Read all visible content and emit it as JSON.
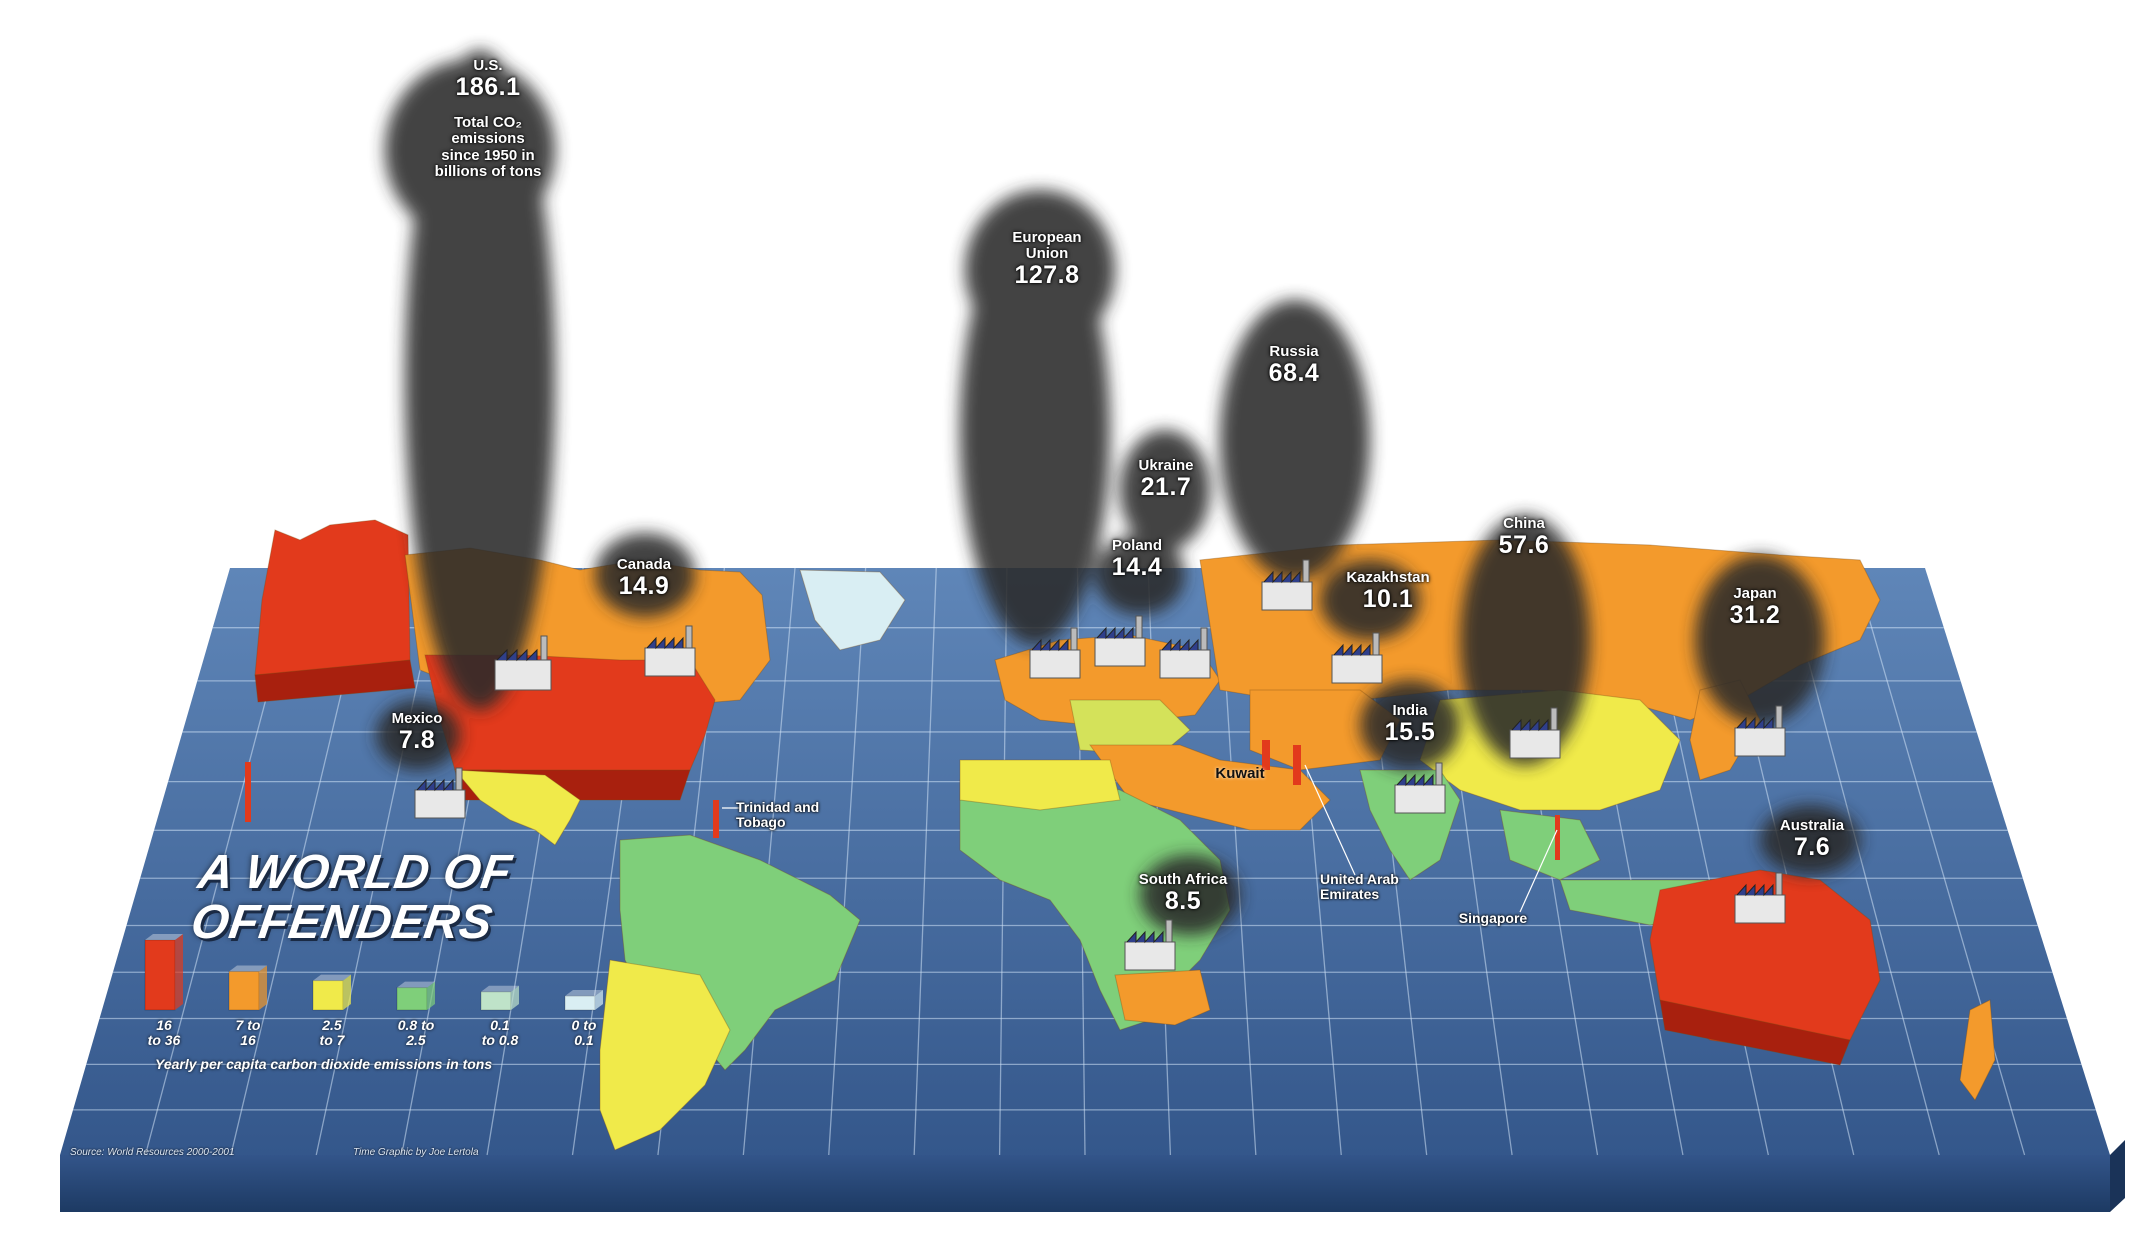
{
  "title_lines": [
    "A WORLD OF",
    "OFFENDERS"
  ],
  "us": {
    "name": "U.S.",
    "value": "186.1",
    "note": "Total CO₂ emissions since 1950 in billions of tons"
  },
  "eu": {
    "name": "European Union",
    "value": "127.8"
  },
  "russia": {
    "name": "Russia",
    "value": "68.4"
  },
  "ukraine": {
    "name": "Ukraine",
    "value": "21.7"
  },
  "poland": {
    "name": "Poland",
    "value": "14.4"
  },
  "china": {
    "name": "China",
    "value": "57.6"
  },
  "kazakhstan": {
    "name": "Kazakhstan",
    "value": "10.1"
  },
  "japan": {
    "name": "Japan",
    "value": "31.2"
  },
  "canada": {
    "name": "Canada",
    "value": "14.9"
  },
  "mexico": {
    "name": "Mexico",
    "value": "7.8"
  },
  "india": {
    "name": "India",
    "value": "15.5"
  },
  "south_africa": {
    "name": "South Africa",
    "value": "8.5"
  },
  "australia": {
    "name": "Australia",
    "value": "7.6"
  },
  "kuwait": {
    "name": "Kuwait"
  },
  "trinidad": {
    "name": "Trinidad and Tobago"
  },
  "uae": {
    "name": "United Arab Emirates"
  },
  "singapore": {
    "name": "Singapore"
  },
  "legend": {
    "caption": "Yearly per capita carbon dioxide emissions in tons",
    "bins": [
      {
        "label": "16\nto 36",
        "color": "#e23a1c",
        "level": 1.0
      },
      {
        "label": "7 to\n16",
        "color": "#f39a2c",
        "level": 0.55
      },
      {
        "label": "2.5\nto 7",
        "color": "#f0ea4a",
        "level": 0.42
      },
      {
        "label": "0.8 to\n2.5",
        "color": "#7fcf7a",
        "level": 0.32
      },
      {
        "label": "0.1\nto 0.8",
        "color": "#bfe3c9",
        "level": 0.26
      },
      {
        "label": "0 to\n0.1",
        "color": "#d9eef3",
        "level": 0.2
      }
    ]
  },
  "source": "Source: World Resources 2000-2001",
  "credit": "Time Graphic by Joe Lertola",
  "colors": {
    "ocean": "#3a5f93",
    "ocean_light": "#5d82b4",
    "edge": "#2d4c78",
    "grid": "#cfe1f5",
    "smoke": "#2b2b2b"
  }
}
